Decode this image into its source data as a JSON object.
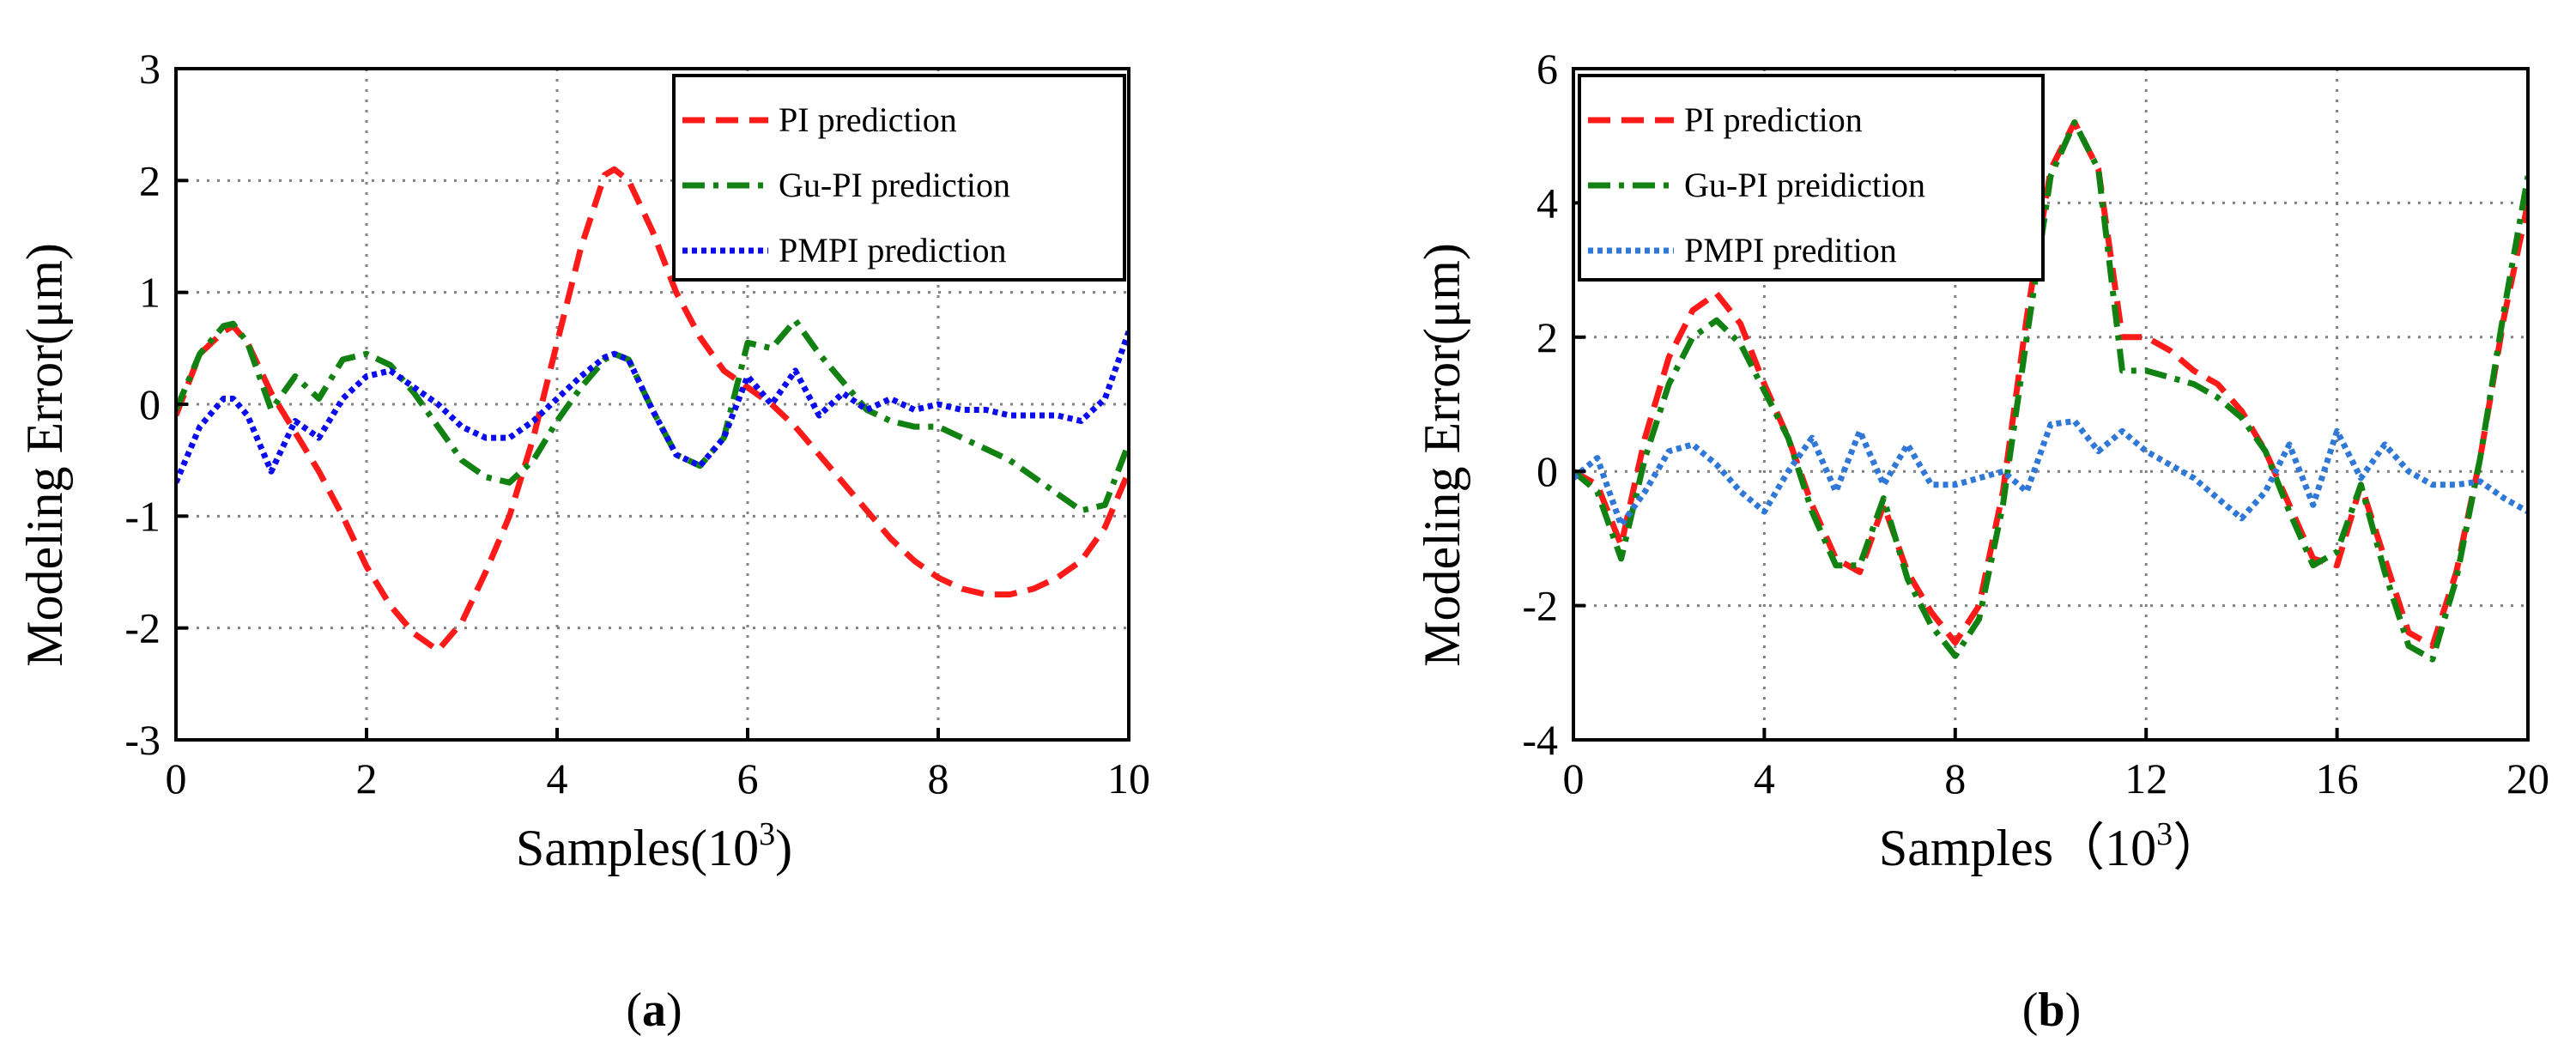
{
  "chart_data": [
    {
      "type": "line",
      "panel_label": "a",
      "xlabel": "Samples(10",
      "xlabel_sup": "3",
      "xlabel_close": ")",
      "ylabel": "Modeling Error(μm)",
      "xlim": [
        0,
        10
      ],
      "ylim": [
        -3,
        3
      ],
      "xticks": [
        0,
        2,
        4,
        6,
        8,
        10
      ],
      "yticks": [
        -3,
        -2,
        -1,
        0,
        1,
        2,
        3
      ],
      "grid": true,
      "legend_position": "top-right",
      "x": [
        0,
        0.25,
        0.5,
        0.6,
        0.75,
        1.0,
        1.25,
        1.5,
        1.75,
        2.0,
        2.25,
        2.5,
        2.75,
        3.0,
        3.25,
        3.5,
        3.75,
        4.0,
        4.25,
        4.5,
        4.6,
        4.75,
        5.0,
        5.25,
        5.5,
        5.75,
        6.0,
        6.25,
        6.5,
        6.75,
        7.0,
        7.25,
        7.5,
        7.75,
        8.0,
        8.25,
        8.5,
        8.75,
        9.0,
        9.25,
        9.5,
        9.75,
        10.0
      ],
      "series": [
        {
          "name": "PI prediction",
          "color": "#ff1a1a",
          "dash": "dash",
          "values": [
            -0.1,
            0.45,
            0.65,
            0.7,
            0.55,
            0.1,
            -0.25,
            -0.6,
            -1.0,
            -1.45,
            -1.8,
            -2.05,
            -2.2,
            -1.95,
            -1.5,
            -1.0,
            -0.3,
            0.55,
            1.4,
            2.05,
            2.1,
            2.0,
            1.55,
            1.0,
            0.6,
            0.3,
            0.15,
            0.0,
            -0.2,
            -0.45,
            -0.7,
            -0.95,
            -1.2,
            -1.4,
            -1.55,
            -1.65,
            -1.7,
            -1.7,
            -1.65,
            -1.55,
            -1.4,
            -1.1,
            -0.6
          ]
        },
        {
          "name": "Gu-PI prediction",
          "color": "#118211",
          "dash": "dashdot",
          "values": [
            -0.05,
            0.45,
            0.7,
            0.72,
            0.55,
            -0.05,
            0.25,
            0.05,
            0.4,
            0.45,
            0.35,
            0.1,
            -0.2,
            -0.5,
            -0.65,
            -0.7,
            -0.5,
            -0.15,
            0.15,
            0.4,
            0.45,
            0.4,
            -0.05,
            -0.45,
            -0.55,
            -0.3,
            0.55,
            0.5,
            0.75,
            0.45,
            0.2,
            -0.05,
            -0.15,
            -0.2,
            -0.2,
            -0.3,
            -0.4,
            -0.5,
            -0.65,
            -0.8,
            -0.95,
            -0.9,
            -0.35
          ]
        },
        {
          "name": "PMPI prediction",
          "color": "#0b0bf0",
          "dash": "dot",
          "values": [
            -0.7,
            -0.2,
            0.05,
            0.05,
            -0.1,
            -0.6,
            -0.15,
            -0.3,
            0.05,
            0.25,
            0.3,
            0.15,
            0.0,
            -0.2,
            -0.3,
            -0.3,
            -0.15,
            0.05,
            0.25,
            0.42,
            0.45,
            0.4,
            -0.05,
            -0.45,
            -0.55,
            -0.3,
            0.25,
            0.0,
            0.3,
            -0.1,
            0.1,
            -0.05,
            0.05,
            -0.05,
            0.0,
            -0.05,
            -0.05,
            -0.1,
            -0.1,
            -0.1,
            -0.15,
            0.05,
            0.65
          ]
        }
      ]
    },
    {
      "type": "line",
      "panel_label": "b",
      "xlabel": "Samples（10",
      "xlabel_sup": "3",
      "xlabel_close": "）",
      "ylabel": "Modeling Error(μm)",
      "xlim": [
        0,
        20
      ],
      "ylim": [
        -4,
        6
      ],
      "xticks": [
        0,
        4,
        8,
        12,
        16,
        20
      ],
      "yticks": [
        -4,
        -2,
        0,
        2,
        4,
        6
      ],
      "grid": true,
      "legend_position": "top-left",
      "x": [
        0,
        0.5,
        1,
        1.5,
        2,
        2.5,
        3,
        3.5,
        4,
        4.5,
        5,
        5.5,
        6,
        6.5,
        7,
        7.5,
        8,
        8.5,
        9,
        9.5,
        10,
        10.5,
        11,
        11.5,
        12,
        12.5,
        13,
        13.5,
        14,
        14.5,
        15,
        15.5,
        16,
        16.5,
        17,
        17.5,
        18,
        18.5,
        19,
        19.5,
        20
      ],
      "series": [
        {
          "name": "PI prediction",
          "color": "#ff1a1a",
          "dash": "dash",
          "values": [
            0.0,
            -0.2,
            -1.1,
            0.5,
            1.7,
            2.4,
            2.65,
            2.2,
            1.3,
            0.5,
            -0.5,
            -1.3,
            -1.5,
            -0.5,
            -1.5,
            -2.1,
            -2.55,
            -2.0,
            -0.3,
            2.3,
            4.5,
            5.2,
            4.5,
            2.0,
            2.0,
            1.8,
            1.5,
            1.3,
            0.9,
            0.3,
            -0.5,
            -1.3,
            -1.4,
            -0.2,
            -1.3,
            -2.4,
            -2.6,
            -1.5,
            0.2,
            2.3,
            4.0
          ]
        },
        {
          "name": "Gu-PI preidiction",
          "color": "#118211",
          "dash": "dashdot",
          "values": [
            0.0,
            -0.3,
            -1.3,
            0.2,
            1.3,
            2.0,
            2.25,
            1.9,
            1.2,
            0.5,
            -0.6,
            -1.4,
            -1.4,
            -0.4,
            -1.6,
            -2.3,
            -2.75,
            -2.2,
            -0.5,
            2.0,
            4.4,
            5.2,
            4.5,
            1.5,
            1.5,
            1.4,
            1.3,
            1.1,
            0.8,
            0.3,
            -0.6,
            -1.4,
            -1.2,
            -0.2,
            -1.5,
            -2.6,
            -2.8,
            -1.6,
            0.2,
            2.4,
            4.4
          ]
        },
        {
          "name": "PMPI predition",
          "color": "#2f78d8",
          "dash": "dot",
          "values": [
            -0.1,
            0.2,
            -0.8,
            -0.3,
            0.3,
            0.4,
            0.1,
            -0.3,
            -0.6,
            0.0,
            0.5,
            -0.3,
            0.6,
            -0.2,
            0.4,
            -0.2,
            -0.2,
            -0.1,
            0.0,
            -0.3,
            0.7,
            0.75,
            0.3,
            0.6,
            0.3,
            0.1,
            -0.1,
            -0.4,
            -0.7,
            -0.3,
            0.4,
            -0.5,
            0.6,
            -0.1,
            0.4,
            0.0,
            -0.2,
            -0.2,
            -0.15,
            -0.4,
            -0.6
          ]
        }
      ]
    }
  ]
}
